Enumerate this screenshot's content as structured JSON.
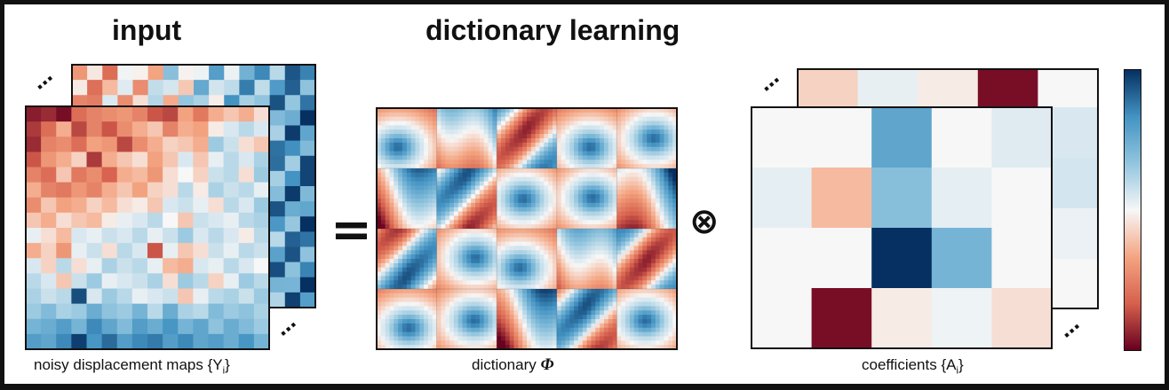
{
  "titles": {
    "input": "input",
    "dictionary_learning": "dictionary learning"
  },
  "captions": {
    "input_prefix": "noisy displacement maps {Y",
    "input_sub": "i",
    "input_suffix": "}",
    "dictionary_prefix": "dictionary ",
    "dictionary_symbol": "Φ",
    "coefficients_prefix": "coefficients {A",
    "coefficients_sub": "i",
    "coefficients_suffix": "}"
  },
  "operators": {
    "equals": "=",
    "tensor": "⊗"
  },
  "ellipsis": "···",
  "colormap": {
    "name": "RdBu",
    "stops": [
      "#67001f",
      "#d6604d",
      "#f4a582",
      "#f7f7f7",
      "#92c5de",
      "#4393c3",
      "#053061"
    ]
  },
  "noisy_map_front": [
    [
      -0.9,
      -0.85,
      -0.95,
      -0.6,
      -0.5,
      -0.45,
      -0.4,
      -0.5,
      -0.7,
      -0.75,
      -0.35,
      -0.55,
      -0.3,
      -0.2,
      -0.3,
      -0.1
    ],
    [
      -0.8,
      -0.6,
      -0.3,
      -0.75,
      -0.5,
      -0.7,
      -0.45,
      -0.3,
      -0.2,
      -0.5,
      -0.3,
      -0.35,
      -0.05,
      0.1,
      0.2,
      0.1
    ],
    [
      -0.85,
      -0.5,
      -0.45,
      -0.6,
      -0.35,
      -0.4,
      -0.75,
      -0.45,
      -0.3,
      -0.15,
      -0.2,
      -0.3,
      0.3,
      0.15,
      -0.1,
      -0.2
    ],
    [
      -0.7,
      -0.4,
      -0.3,
      -0.15,
      -0.8,
      -0.3,
      -0.2,
      -0.1,
      -0.35,
      -0.2,
      0.1,
      -0.2,
      0.05,
      0.2,
      0.1,
      0.25
    ],
    [
      -0.5,
      -0.6,
      -0.2,
      -0.55,
      -0.45,
      -0.65,
      -0.3,
      -0.25,
      -0.4,
      -0.1,
      0.0,
      -0.15,
      0.15,
      0.2,
      -0.1,
      0.3
    ],
    [
      -0.3,
      -0.5,
      -0.55,
      -0.4,
      -0.5,
      -0.3,
      -0.2,
      -0.35,
      -0.15,
      -0.1,
      0.2,
      -0.05,
      0.25,
      0.15,
      0.2,
      0.05
    ],
    [
      -0.45,
      -0.2,
      -0.35,
      -0.3,
      -0.15,
      -0.25,
      -0.1,
      -0.05,
      -0.2,
      0.1,
      0.15,
      0.05,
      -0.1,
      0.2,
      0.1,
      0.3
    ],
    [
      -0.2,
      -0.3,
      -0.1,
      -0.2,
      -0.25,
      -0.05,
      0.05,
      0.1,
      0.2,
      0.0,
      -0.2,
      0.15,
      0.1,
      0.05,
      0.2,
      0.25
    ],
    [
      0.05,
      -0.1,
      -0.25,
      0.1,
      0.05,
      0.15,
      0.1,
      0.2,
      0.05,
      0.15,
      0.3,
      0.1,
      0.2,
      0.1,
      -0.05,
      0.2
    ],
    [
      -0.3,
      -0.15,
      -0.4,
      0.05,
      0.15,
      -0.1,
      0.2,
      0.1,
      -0.7,
      0.05,
      -0.2,
      -0.1,
      0.15,
      0.05,
      0.2,
      0.15
    ],
    [
      0.1,
      -0.15,
      0.2,
      -0.1,
      0.05,
      0.25,
      0.15,
      0.2,
      0.05,
      -0.25,
      -0.3,
      0.1,
      0.05,
      0.2,
      0.1,
      0.0
    ],
    [
      0.2,
      0.1,
      -0.2,
      0.15,
      0.3,
      0.05,
      0.1,
      0.15,
      0.25,
      -0.1,
      0.3,
      0.2,
      -0.15,
      0.05,
      0.3,
      0.2
    ],
    [
      0.25,
      0.15,
      0.2,
      0.9,
      0.1,
      0.3,
      0.2,
      0.05,
      0.1,
      0.15,
      -0.2,
      0.05,
      0.2,
      0.25,
      0.15,
      0.3
    ],
    [
      0.3,
      0.4,
      0.25,
      0.3,
      0.5,
      0.35,
      0.3,
      0.45,
      0.2,
      0.5,
      0.25,
      0.2,
      0.4,
      0.3,
      0.35,
      0.25
    ],
    [
      0.45,
      0.5,
      0.6,
      0.45,
      0.7,
      0.55,
      0.4,
      0.6,
      0.5,
      0.65,
      0.45,
      0.55,
      0.35,
      0.5,
      0.4,
      0.3
    ],
    [
      0.6,
      0.55,
      0.7,
      0.95,
      0.65,
      0.8,
      0.6,
      0.7,
      0.75,
      0.6,
      0.7,
      0.55,
      0.6,
      0.5,
      0.65,
      0.45
    ]
  ],
  "coefficients_front": [
    [
      0.0,
      0.0,
      0.55,
      0.0,
      0.08
    ],
    [
      0.06,
      -0.25,
      0.38,
      0.06,
      0.0
    ],
    [
      0.0,
      0.0,
      1.0,
      0.45,
      0.0
    ],
    [
      0.0,
      -0.95,
      -0.05,
      0.03,
      -0.1
    ]
  ],
  "coefficients_back_top": [
    -0.15,
    0.05,
    -0.05,
    -0.95,
    0.0
  ]
}
